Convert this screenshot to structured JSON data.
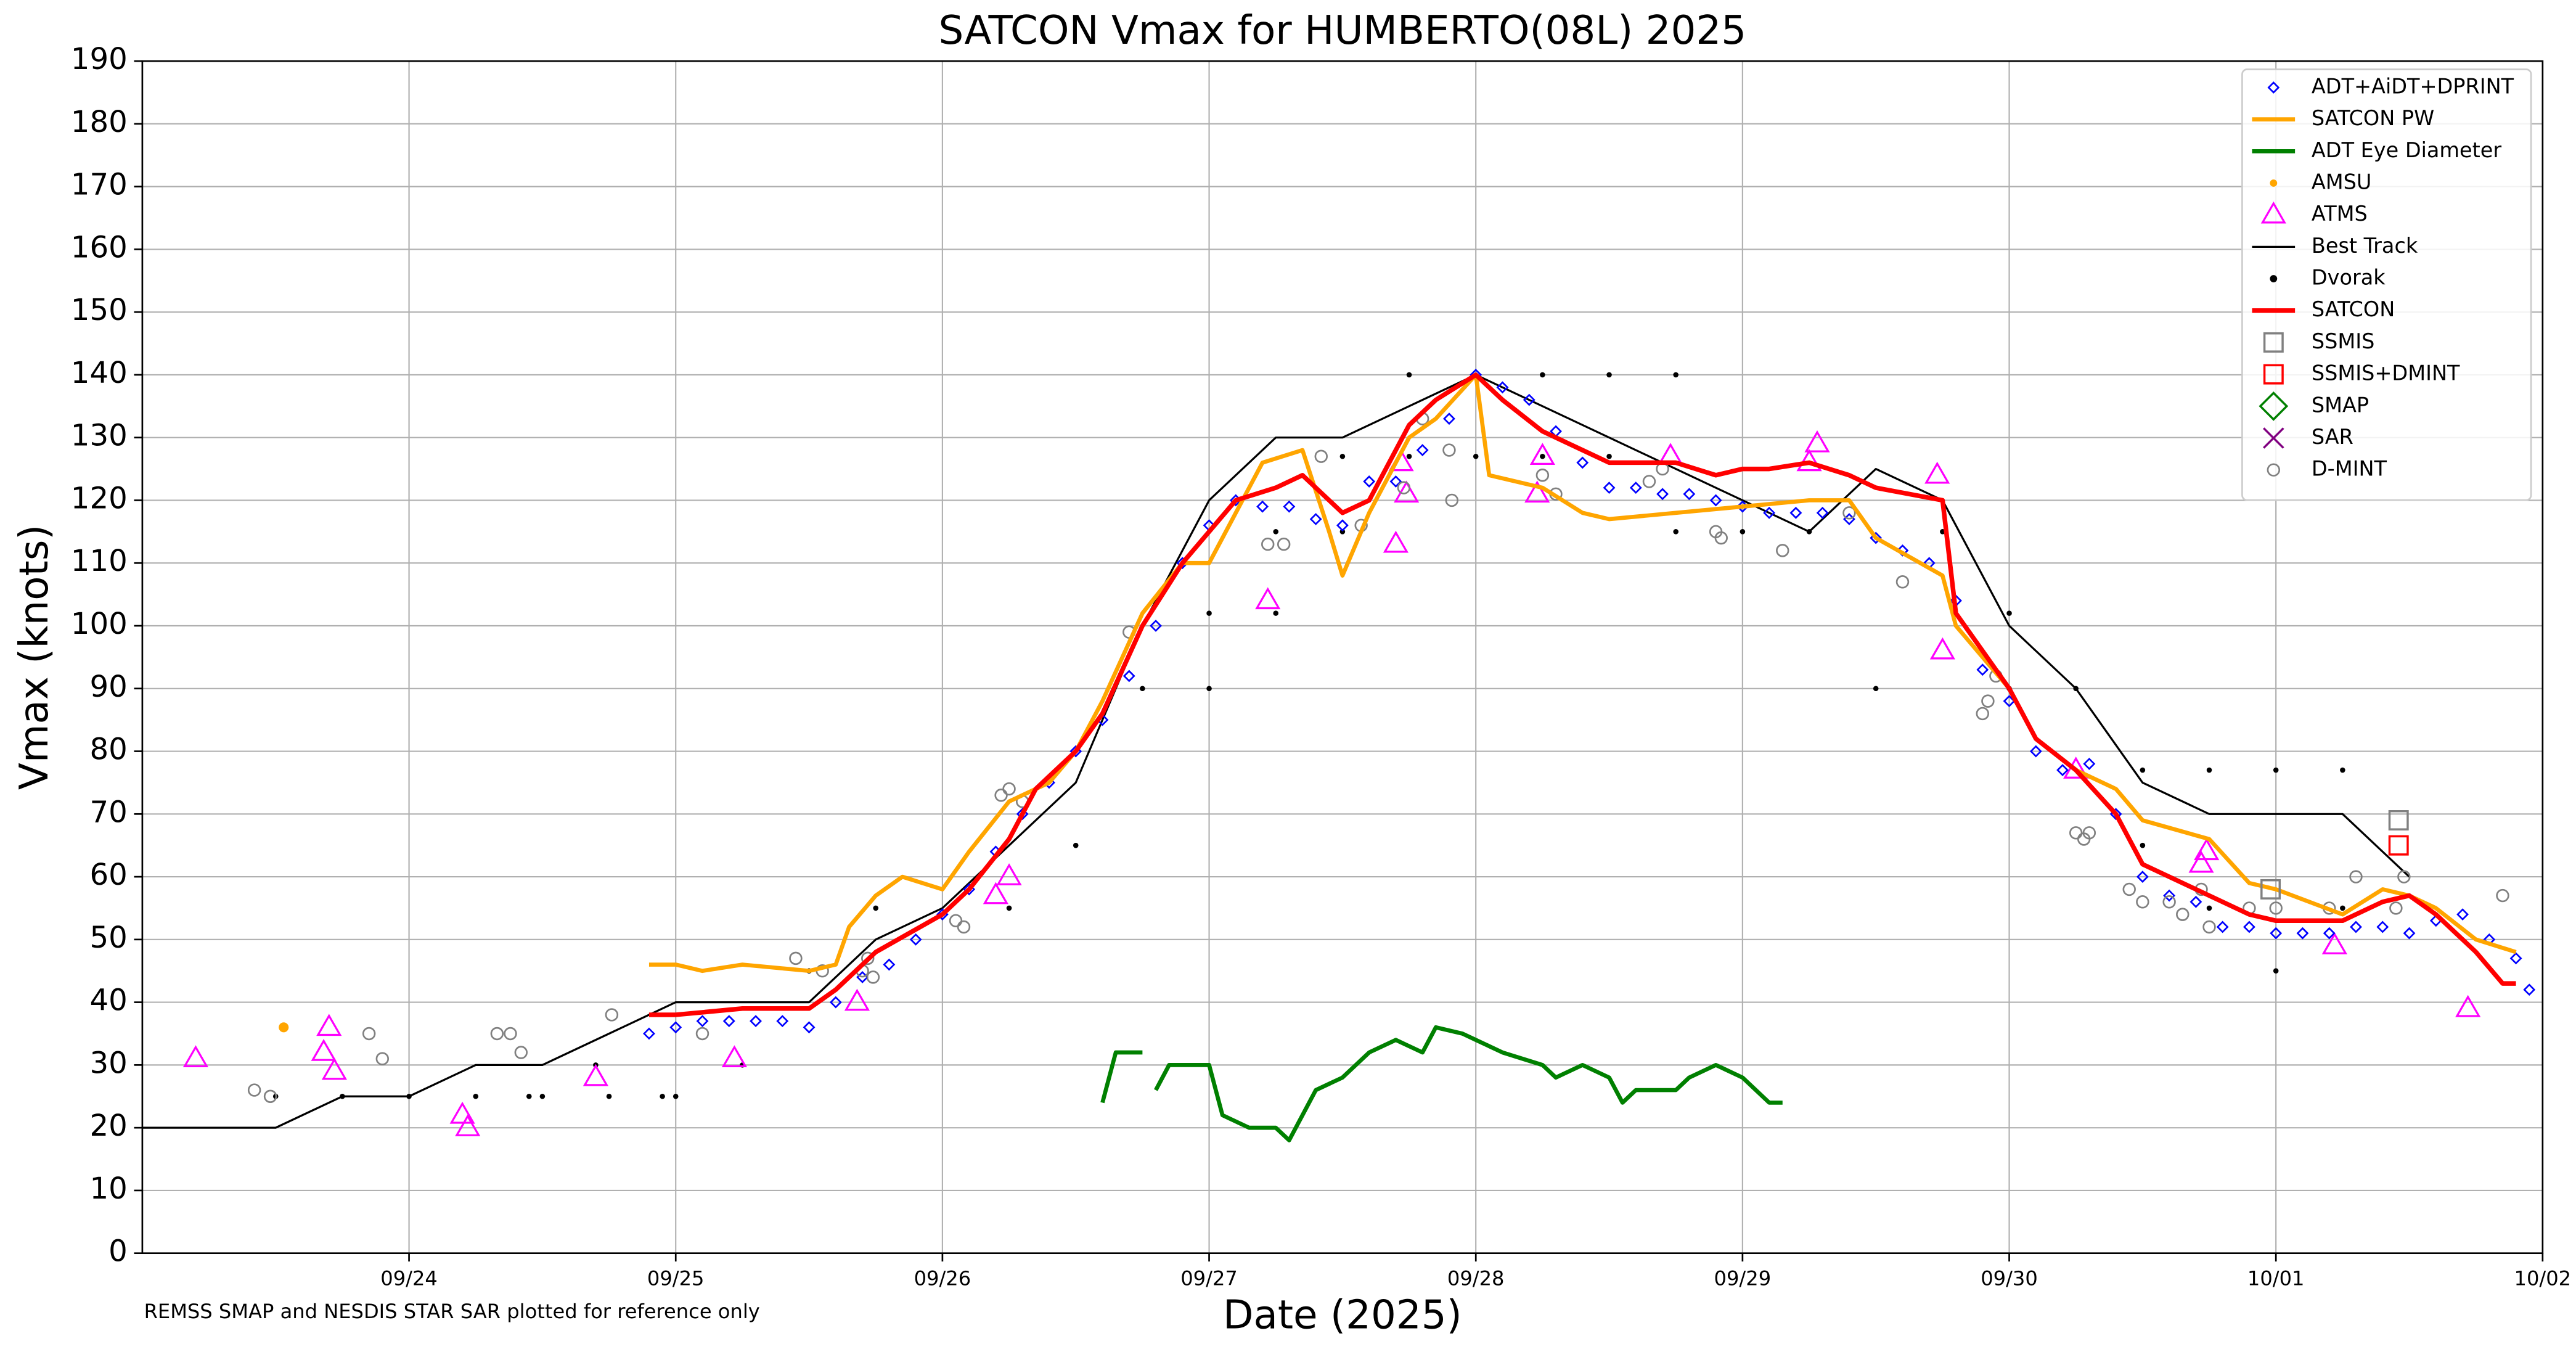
{
  "chart_data": {
    "type": "line",
    "title": "SATCON Vmax for HUMBERTO(08L) 2025",
    "xlabel": "Date (2025)",
    "ylabel": "Vmax (knots)",
    "note": "REMSS SMAP and NESDIS STAR SAR plotted for reference only",
    "xlim": [
      23,
      32
    ],
    "ylim": [
      0,
      190
    ],
    "xticks": [
      {
        "value": 24,
        "label": "09/24"
      },
      {
        "value": 25,
        "label": "09/25"
      },
      {
        "value": 26,
        "label": "09/26"
      },
      {
        "value": 27,
        "label": "09/27"
      },
      {
        "value": 28,
        "label": "09/28"
      },
      {
        "value": 29,
        "label": "09/29"
      },
      {
        "value": 30,
        "label": "09/30"
      },
      {
        "value": 31,
        "label": "10/01"
      },
      {
        "value": 32,
        "label": "10/02"
      }
    ],
    "yticks": [
      0,
      10,
      20,
      30,
      40,
      50,
      60,
      70,
      80,
      90,
      100,
      110,
      120,
      130,
      140,
      150,
      160,
      170,
      180,
      190
    ],
    "grid": true,
    "legend": "upper right",
    "series": [
      {
        "name": "ADT+AiDT+DPRINT",
        "style": "diamond",
        "color": "#0000ff",
        "markersize": 3,
        "x": [
          24.9,
          25.0,
          25.1,
          25.2,
          25.3,
          25.4,
          25.5,
          25.6,
          25.7,
          25.8,
          25.9,
          26.0,
          26.1,
          26.2,
          26.3,
          26.4,
          26.5,
          26.6,
          26.7,
          26.8,
          26.9,
          27.0,
          27.1,
          27.2,
          27.3,
          27.4,
          27.5,
          27.6,
          27.7,
          27.8,
          27.9,
          28.0,
          28.1,
          28.2,
          28.3,
          28.4,
          28.5,
          28.6,
          28.7,
          28.8,
          28.9,
          29.0,
          29.1,
          29.2,
          29.3,
          29.4,
          29.5,
          29.6,
          29.7,
          29.8,
          29.9,
          30.0,
          30.1,
          30.2,
          30.3,
          30.4,
          30.5,
          30.6,
          30.7,
          30.8,
          30.9,
          31.0,
          31.1,
          31.2,
          31.3,
          31.4,
          31.5,
          31.6,
          31.7,
          31.8,
          31.9,
          31.95
        ],
        "values": [
          35,
          36,
          37,
          37,
          37,
          37,
          36,
          40,
          44,
          46,
          50,
          54,
          58,
          64,
          70,
          75,
          80,
          85,
          92,
          100,
          110,
          116,
          120,
          119,
          119,
          117,
          116,
          123,
          123,
          128,
          133,
          140,
          138,
          136,
          131,
          126,
          122,
          122,
          121,
          121,
          120,
          119,
          118,
          118,
          118,
          117,
          114,
          112,
          110,
          104,
          93,
          88,
          80,
          77,
          78,
          70,
          60,
          57,
          56,
          52,
          52,
          51,
          51,
          51,
          52,
          52,
          51,
          53,
          54,
          50,
          47,
          42
        ]
      },
      {
        "name": "SATCON PW",
        "style": "line",
        "color": "#ffa500",
        "linewidth": 2.5,
        "x": [
          24.9,
          25.0,
          25.1,
          25.25,
          25.5,
          25.6,
          25.65,
          25.75,
          25.85,
          26.0,
          26.1,
          26.25,
          26.4,
          26.5,
          26.6,
          26.75,
          26.9,
          27.0,
          27.1,
          27.2,
          27.35,
          27.45,
          27.5,
          27.6,
          27.75,
          27.85,
          28.0,
          28.05,
          28.25,
          28.4,
          28.5,
          28.75,
          29.0,
          29.25,
          29.4,
          29.5,
          29.75,
          29.8,
          30.0,
          30.1,
          30.25,
          30.4,
          30.5,
          30.75,
          30.9,
          31.0,
          31.25,
          31.4,
          31.5,
          31.6,
          31.75,
          31.9
        ],
        "values": [
          46,
          46,
          45,
          46,
          45,
          46,
          52,
          57,
          60,
          58,
          64,
          72,
          75,
          80,
          88,
          102,
          110,
          110,
          118,
          126,
          128,
          115,
          108,
          118,
          130,
          133,
          140,
          124,
          122,
          118,
          117,
          118,
          119,
          120,
          120,
          114,
          108,
          100,
          90,
          82,
          77,
          74,
          69,
          66,
          59,
          58,
          54,
          58,
          57,
          55,
          50,
          48
        ]
      },
      {
        "name": "ADT Eye Diameter",
        "style": "line",
        "color": "#008000",
        "linewidth": 2.5,
        "x": [
          26.6,
          26.65,
          26.75,
          26.78,
          26.8,
          26.85,
          27.0,
          27.05,
          27.15,
          27.25,
          27.3,
          27.4,
          27.5,
          27.6,
          27.7,
          27.8,
          27.85,
          27.95,
          28.0,
          28.1,
          28.25,
          28.3,
          28.4,
          28.5,
          28.55,
          28.6,
          28.75,
          28.8,
          28.9,
          29.0,
          29.1,
          29.15
        ],
        "values": [
          24,
          32,
          32,
          null,
          26,
          30,
          30,
          22,
          20,
          20,
          18,
          26,
          28,
          32,
          34,
          32,
          36,
          35,
          34,
          32,
          30,
          28,
          30,
          28,
          24,
          26,
          26,
          28,
          30,
          28,
          24,
          24
        ]
      },
      {
        "name": "AMSU",
        "style": "dot",
        "color": "#ffa500",
        "markersize": 3,
        "x": [
          23.53
        ],
        "values": [
          36
        ]
      },
      {
        "name": "ATMS",
        "style": "triangle",
        "color": "#ff00ff",
        "markersize": 7,
        "x": [
          23.2,
          23.68,
          23.7,
          23.72,
          24.2,
          24.22,
          24.7,
          25.22,
          25.68,
          26.2,
          26.25,
          27.22,
          27.7,
          27.72,
          27.74,
          28.23,
          28.25,
          28.73,
          29.25,
          29.28,
          29.73,
          29.75,
          30.25,
          30.72,
          30.74,
          31.22,
          31.72
        ],
        "values": [
          31,
          32,
          36,
          29,
          22,
          20,
          28,
          31,
          40,
          57,
          60,
          104,
          113,
          126,
          121,
          121,
          127,
          127,
          126,
          129,
          124,
          96,
          77,
          62,
          64,
          49,
          39
        ]
      },
      {
        "name": "Best Track",
        "style": "line",
        "color": "#000000",
        "linewidth": 1.2,
        "x": [
          23.0,
          23.5,
          23.75,
          24.0,
          24.25,
          24.5,
          24.75,
          25.0,
          25.25,
          25.5,
          25.75,
          26.0,
          26.25,
          26.5,
          26.75,
          27.0,
          27.25,
          27.5,
          27.75,
          28.0,
          28.25,
          28.5,
          28.75,
          29.0,
          29.25,
          29.5,
          29.75,
          30.0,
          30.25,
          30.5,
          30.75,
          31.0,
          31.25,
          31.5
        ],
        "values": [
          20,
          20,
          25,
          25,
          30,
          30,
          35,
          40,
          40,
          40,
          50,
          55,
          65,
          75,
          100,
          120,
          130,
          130,
          135,
          140,
          135,
          130,
          125,
          120,
          115,
          125,
          120,
          100,
          90,
          75,
          70,
          70,
          70,
          60
        ]
      },
      {
        "name": "Dvorak",
        "style": "dot",
        "color": "#000000",
        "markersize": 1.6,
        "x": [
          23.5,
          23.75,
          24.0,
          24.25,
          24.45,
          24.5,
          24.7,
          24.75,
          24.95,
          25.0,
          25.25,
          25.5,
          25.75,
          26.25,
          26.5,
          26.75,
          27.0,
          27.0,
          27.25,
          27.25,
          27.5,
          27.5,
          27.75,
          27.75,
          28.0,
          28.25,
          28.25,
          28.5,
          28.5,
          28.75,
          28.75,
          29.0,
          29.25,
          29.5,
          29.75,
          30.0,
          30.0,
          30.25,
          30.5,
          30.5,
          30.75,
          30.75,
          31.0,
          31.0,
          31.25,
          31.25
        ],
        "values": [
          25,
          25,
          25,
          25,
          25,
          25,
          30,
          25,
          25,
          25,
          30,
          45,
          55,
          55,
          65,
          90,
          102,
          90,
          102,
          115,
          127,
          115,
          127,
          140,
          127,
          140,
          127,
          140,
          127,
          140,
          115,
          115,
          115,
          90,
          115,
          102,
          90,
          90,
          77,
          65,
          77,
          55,
          77,
          45,
          77,
          55
        ]
      },
      {
        "name": "SATCON",
        "style": "line",
        "color": "#ff0000",
        "linewidth": 2.8,
        "x": [
          24.9,
          25.0,
          25.25,
          25.5,
          25.6,
          25.75,
          26.0,
          26.1,
          26.25,
          26.35,
          26.5,
          26.6,
          26.75,
          26.9,
          27.0,
          27.1,
          27.25,
          27.35,
          27.5,
          27.6,
          27.75,
          27.85,
          28.0,
          28.1,
          28.25,
          28.4,
          28.5,
          28.75,
          28.9,
          29.0,
          29.1,
          29.25,
          29.4,
          29.5,
          29.75,
          29.8,
          30.0,
          30.1,
          30.25,
          30.4,
          30.5,
          30.75,
          30.9,
          31.0,
          31.25,
          31.4,
          31.5,
          31.6,
          31.75,
          31.85,
          31.9
        ],
        "values": [
          38,
          38,
          39,
          39,
          42,
          48,
          54,
          58,
          66,
          74,
          80,
          86,
          100,
          110,
          115,
          120,
          122,
          124,
          118,
          120,
          132,
          136,
          140,
          136,
          131,
          128,
          126,
          126,
          124,
          125,
          125,
          126,
          124,
          122,
          120,
          102,
          90,
          82,
          77,
          70,
          62,
          57,
          54,
          53,
          53,
          56,
          57,
          54,
          48,
          43,
          43
        ]
      },
      {
        "name": "SSMIS",
        "style": "square",
        "color": "#808080",
        "markersize": 5.5,
        "x": [
          30.98,
          31.46
        ],
        "values": [
          58,
          69
        ]
      },
      {
        "name": "SSMIS+DMINT",
        "style": "square",
        "color": "#ff0000",
        "markersize": 5.5,
        "x": [
          31.46
        ],
        "values": [
          65
        ]
      },
      {
        "name": "SMAP",
        "style": "bigdiamond",
        "color": "#008000",
        "markersize": 8,
        "x": [],
        "values": []
      },
      {
        "name": "SAR",
        "style": "x",
        "color": "#800080",
        "markersize": 6,
        "x": [],
        "values": []
      },
      {
        "name": "D-MINT",
        "style": "circle",
        "color": "#808080",
        "markersize": 3.5,
        "x": [
          23.42,
          23.48,
          23.85,
          23.9,
          24.33,
          24.38,
          24.42,
          24.76,
          25.1,
          25.45,
          25.55,
          25.7,
          25.72,
          25.74,
          26.05,
          26.08,
          26.22,
          26.25,
          26.3,
          26.7,
          27.22,
          27.28,
          27.42,
          27.57,
          27.73,
          27.8,
          27.9,
          27.91,
          28.25,
          28.3,
          28.65,
          28.7,
          28.9,
          28.92,
          29.15,
          29.4,
          29.6,
          29.9,
          29.92,
          29.95,
          30.25,
          30.28,
          30.3,
          30.45,
          30.5,
          30.6,
          30.65,
          30.72,
          30.75,
          30.9,
          31.0,
          31.2,
          31.3,
          31.45,
          31.48,
          31.85
        ],
        "values": [
          26,
          25,
          35,
          31,
          35,
          35,
          32,
          38,
          35,
          47,
          45,
          45,
          47,
          44,
          53,
          52,
          73,
          74,
          72,
          99,
          113,
          113,
          127,
          116,
          122,
          133,
          128,
          120,
          124,
          121,
          123,
          125,
          115,
          114,
          112,
          118,
          107,
          86,
          88,
          92,
          67,
          66,
          67,
          58,
          56,
          56,
          54,
          58,
          52,
          55,
          55,
          55,
          60,
          55,
          60,
          57
        ]
      }
    ]
  }
}
